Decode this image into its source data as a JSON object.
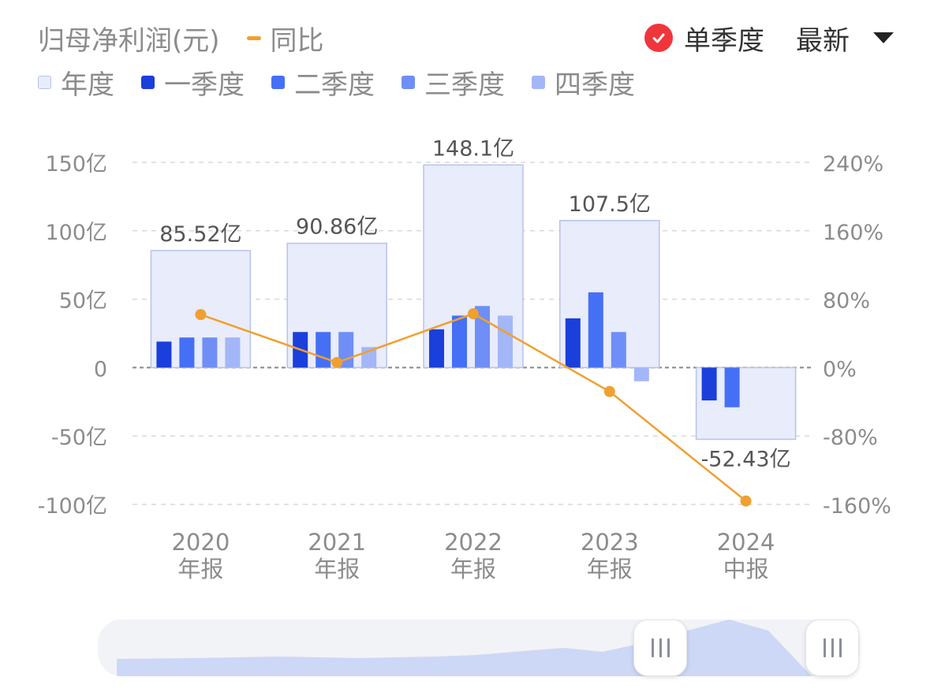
{
  "header": {
    "title": "归母净利润(元)",
    "yoy_label": "同比",
    "mode_label": "单季度",
    "sort_label": "最新",
    "icons": [
      "check-icon",
      "caret-down-icon"
    ]
  },
  "legend": [
    {
      "label": "年度",
      "color": "#e8ecfb",
      "border": "#b7c3e8"
    },
    {
      "label": "一季度",
      "color": "#1a3fdb"
    },
    {
      "label": "二季度",
      "color": "#4570f5"
    },
    {
      "label": "三季度",
      "color": "#6f8ff6"
    },
    {
      "label": "四季度",
      "color": "#a3b6f8"
    }
  ],
  "chart_data": {
    "type": "bar",
    "categories": [
      "2020\n年报",
      "2021\n年报",
      "2022\n年报",
      "2023\n年报",
      "2024\n中报"
    ],
    "annual": {
      "name": "年度",
      "values": [
        85.52,
        90.86,
        148.1,
        107.5,
        -52.43
      ],
      "labels": [
        "85.52亿",
        "90.86亿",
        "148.1亿",
        "107.5亿",
        "-52.43亿"
      ]
    },
    "quarters": [
      {
        "name": "一季度",
        "values": [
          19,
          26,
          28,
          36,
          -24
        ]
      },
      {
        "name": "二季度",
        "values": [
          22,
          26,
          38,
          55,
          -29
        ]
      },
      {
        "name": "三季度",
        "values": [
          22,
          26,
          45,
          26,
          null
        ]
      },
      {
        "name": "四季度",
        "values": [
          22,
          15,
          38,
          -10,
          null
        ]
      }
    ],
    "yoy": {
      "name": "同比",
      "values": [
        62,
        6,
        63,
        -28,
        -156
      ]
    },
    "y_left": {
      "ticks": [
        150,
        100,
        50,
        0,
        -50,
        -100
      ],
      "labels": [
        "150亿",
        "100亿",
        "50亿",
        "0",
        "-50亿",
        "-100亿"
      ],
      "ylim": [
        -100,
        150
      ]
    },
    "y_right": {
      "ticks": [
        240,
        160,
        80,
        0,
        -80,
        -160
      ],
      "labels": [
        "240%",
        "160%",
        "80%",
        "0%",
        "-80%",
        "-160%"
      ],
      "ylim": [
        -160,
        240
      ]
    },
    "grid": true,
    "colors": {
      "yoy": "#f0a030",
      "grid": "#d9d9d9",
      "zero": "#888888",
      "tick": "#8c8c8c",
      "value_label": "#555555"
    }
  },
  "slider": {
    "fill": "#cdd8f6",
    "handle_left_icon": "grip-icon",
    "handle_right_icon": "grip-icon"
  }
}
